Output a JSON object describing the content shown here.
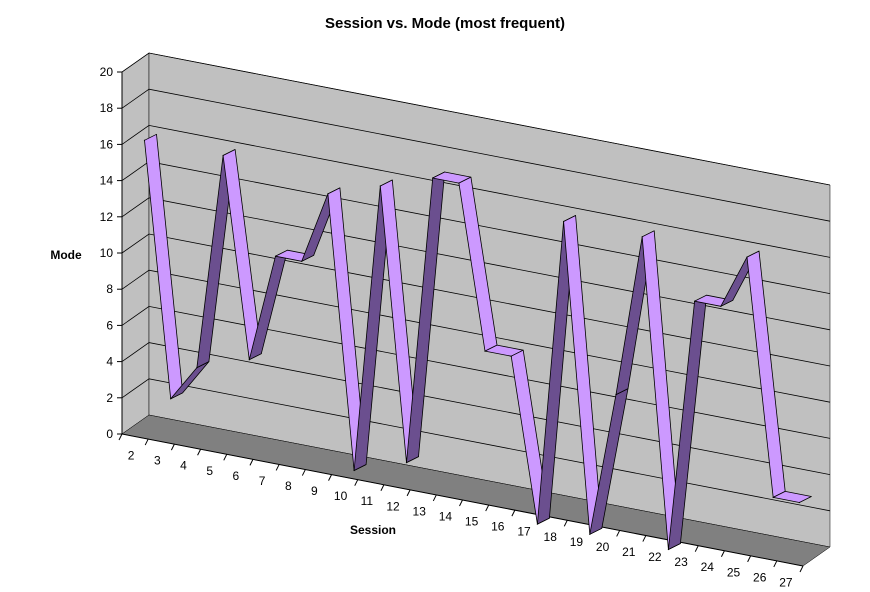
{
  "chart_data": {
    "type": "line",
    "title": "Session vs. Mode (most frequent)",
    "xlabel": "Session",
    "ylabel": "Mode",
    "ylim": [
      0,
      20
    ],
    "y_ticks": [
      "0",
      "2",
      "4",
      "6",
      "8",
      "10",
      "12",
      "14",
      "16",
      "18",
      "20"
    ],
    "categories": [
      "2",
      "3",
      "4",
      "5",
      "6",
      "7",
      "8",
      "9",
      "10",
      "11",
      "12",
      "13",
      "14",
      "15",
      "16",
      "17",
      "18",
      "19",
      "20",
      "21",
      "22",
      "23",
      "24",
      "25",
      "26",
      "27"
    ],
    "series": [
      {
        "values": [
          16,
          2,
          4,
          16,
          5,
          11,
          11,
          15,
          0,
          16,
          1,
          17,
          17,
          8,
          8,
          -1,
          16,
          -1,
          7,
          16,
          -1,
          13,
          13,
          16,
          3,
          3
        ]
      }
    ],
    "grid": true,
    "legend": "none",
    "style": "3d-ribbon",
    "colors": {
      "ribbon_top": "#CC99FF",
      "ribbon_side": "#6B4F8F",
      "ribbon_edge": "#000000",
      "back_wall": "#C0C0C0",
      "side_wall": "#C0C0C0",
      "floor": "#808080",
      "gridline": "#000000"
    }
  }
}
